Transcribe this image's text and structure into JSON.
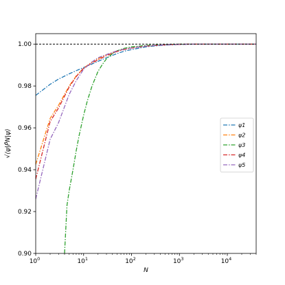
{
  "chart_data": {
    "type": "line",
    "xscale": "log",
    "xlim": [
      1,
      40000
    ],
    "ylim": [
      0.9,
      1.005
    ],
    "xlabel": "N",
    "ylabel": "√⟨ψ|P̂N|ψ⟩",
    "xticks": [
      {
        "value": 1,
        "base": "10",
        "exp": "0"
      },
      {
        "value": 10,
        "base": "10",
        "exp": "1"
      },
      {
        "value": 100,
        "base": "10",
        "exp": "2"
      },
      {
        "value": 1000,
        "base": "10",
        "exp": "3"
      },
      {
        "value": 10000,
        "base": "10",
        "exp": "4"
      }
    ],
    "yticks": [
      {
        "value": 0.9,
        "label": "0.90"
      },
      {
        "value": 0.92,
        "label": "0.92"
      },
      {
        "value": 0.94,
        "label": "0.94"
      },
      {
        "value": 0.96,
        "label": "0.96"
      },
      {
        "value": 0.98,
        "label": "0.98"
      },
      {
        "value": 1.0,
        "label": "1.00"
      }
    ],
    "reference_line": {
      "y": 1.0,
      "style": "dashed",
      "color": "#000000"
    },
    "legend": {
      "placement": "center-right"
    },
    "grid": false,
    "series": [
      {
        "name": "ψ1",
        "color": "#1f77b4",
        "x": [
          1,
          2,
          3,
          5,
          7,
          10,
          15,
          20,
          30,
          50,
          70,
          100,
          200,
          300,
          500,
          1000,
          2000,
          5000,
          10000,
          40000
        ],
        "y": [
          0.9755,
          0.9808,
          0.9833,
          0.9858,
          0.9873,
          0.9888,
          0.9905,
          0.9918,
          0.9935,
          0.9955,
          0.9966,
          0.9974,
          0.9987,
          0.9991,
          0.9995,
          0.99985,
          0.99995,
          1.0,
          1.0,
          1.0
        ]
      },
      {
        "name": "ψ2",
        "color": "#ff7f0e",
        "x": [
          1,
          2,
          3,
          5,
          7,
          10,
          15,
          20,
          30,
          50,
          70,
          100,
          200,
          300,
          500,
          1000,
          2000,
          5000,
          10000,
          40000
        ],
        "y": [
          0.9425,
          0.9645,
          0.9708,
          0.98,
          0.9848,
          0.9885,
          0.9915,
          0.993,
          0.995,
          0.9968,
          0.9976,
          0.9982,
          0.9991,
          0.9994,
          0.9997,
          0.9999,
          1.0,
          1.0,
          1.0,
          1.0
        ]
      },
      {
        "name": "ψ3",
        "color": "#2ca02c",
        "x": [
          4,
          4.5,
          5,
          6,
          7,
          8,
          10,
          12,
          15,
          20,
          25,
          30,
          40,
          50,
          70,
          100,
          200,
          300,
          500,
          1000,
          2000,
          5000,
          10000,
          40000
        ],
        "y": [
          0.9,
          0.923,
          0.93,
          0.94,
          0.949,
          0.956,
          0.966,
          0.973,
          0.98,
          0.987,
          0.9905,
          0.993,
          0.9955,
          0.9968,
          0.998,
          0.9987,
          0.9994,
          0.9996,
          0.9998,
          1.0,
          1.0,
          1.0,
          1.0,
          1.0
        ]
      },
      {
        "name": "ψ4",
        "color": "#d62728",
        "x": [
          1,
          2,
          3,
          5,
          7,
          10,
          15,
          20,
          30,
          50,
          70,
          100,
          200,
          300,
          500,
          1000,
          2000,
          5000,
          10000,
          40000
        ],
        "y": [
          0.9355,
          0.963,
          0.9695,
          0.9795,
          0.9845,
          0.9885,
          0.991,
          0.9925,
          0.9945,
          0.9965,
          0.9974,
          0.9981,
          0.999,
          0.9993,
          0.9996,
          0.9999,
          1.0,
          1.0,
          1.0,
          1.0
        ]
      },
      {
        "name": "ψ5",
        "color": "#9467bd",
        "x": [
          1,
          2,
          3,
          5,
          7,
          10,
          15,
          20,
          30,
          50,
          70,
          100,
          200,
          300,
          500,
          1000,
          2000,
          5000,
          10000,
          40000
        ],
        "y": [
          0.926,
          0.9545,
          0.9625,
          0.976,
          0.9825,
          0.988,
          0.9915,
          0.9935,
          0.995,
          0.9968,
          0.9976,
          0.9982,
          0.9991,
          0.9994,
          0.9997,
          0.9999,
          1.0,
          1.0,
          1.0,
          1.0
        ]
      }
    ]
  }
}
